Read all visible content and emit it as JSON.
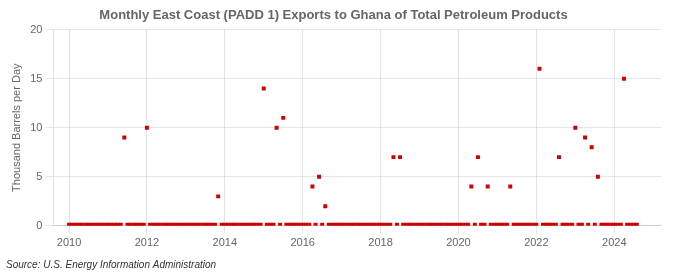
{
  "chart_data": {
    "type": "scatter",
    "title": "Monthly East Coast (PADD 1) Exports to Ghana of Total Petroleum Products",
    "y_label": "Thousand Barrels per Day",
    "annotations": [
      "Source: U.S. Energy Information Administration"
    ],
    "color": "#cc0000",
    "marker": "square",
    "grid": true,
    "xlim": [
      2009.6,
      2025.2
    ],
    "xticks": [
      2010,
      2012,
      2014,
      2016,
      2018,
      2020,
      2022,
      2024
    ],
    "ylim": [
      0,
      20
    ],
    "yticks": [
      0,
      5,
      10,
      15,
      20
    ],
    "x": [
      2010.0,
      2010.08,
      2010.17,
      2010.25,
      2010.33,
      2010.42,
      2010.5,
      2010.58,
      2010.67,
      2010.75,
      2010.83,
      2010.92,
      2011.0,
      2011.08,
      2011.17,
      2011.25,
      2011.33,
      2011.42,
      2011.5,
      2011.58,
      2011.67,
      2011.75,
      2011.83,
      2011.92,
      2012.0,
      2012.08,
      2012.17,
      2012.25,
      2012.33,
      2012.42,
      2012.5,
      2012.58,
      2012.67,
      2012.75,
      2012.83,
      2012.92,
      2013.0,
      2013.08,
      2013.17,
      2013.25,
      2013.33,
      2013.42,
      2013.5,
      2013.58,
      2013.67,
      2013.75,
      2013.83,
      2013.92,
      2014.0,
      2014.08,
      2014.17,
      2014.25,
      2014.33,
      2014.42,
      2014.5,
      2014.58,
      2014.67,
      2014.75,
      2014.83,
      2014.92,
      2015.0,
      2015.08,
      2015.17,
      2015.25,
      2015.33,
      2015.42,
      2015.5,
      2015.58,
      2015.67,
      2015.75,
      2015.83,
      2015.92,
      2016.0,
      2016.08,
      2016.17,
      2016.25,
      2016.33,
      2016.42,
      2016.5,
      2016.58,
      2016.67,
      2016.75,
      2016.83,
      2016.92,
      2017.0,
      2017.08,
      2017.17,
      2017.25,
      2017.33,
      2017.42,
      2017.5,
      2017.58,
      2017.67,
      2017.75,
      2017.83,
      2017.92,
      2018.0,
      2018.08,
      2018.17,
      2018.25,
      2018.33,
      2018.42,
      2018.5,
      2018.58,
      2018.67,
      2018.75,
      2018.83,
      2018.92,
      2019.0,
      2019.08,
      2019.17,
      2019.25,
      2019.33,
      2019.42,
      2019.5,
      2019.58,
      2019.67,
      2019.75,
      2019.83,
      2019.92,
      2020.0,
      2020.08,
      2020.17,
      2020.25,
      2020.33,
      2020.42,
      2020.5,
      2020.58,
      2020.67,
      2020.75,
      2020.83,
      2020.92,
      2021.0,
      2021.08,
      2021.17,
      2021.25,
      2021.33,
      2021.42,
      2021.5,
      2021.58,
      2021.67,
      2021.75,
      2021.83,
      2021.92,
      2022.0,
      2022.08,
      2022.17,
      2022.25,
      2022.33,
      2022.42,
      2022.5,
      2022.58,
      2022.67,
      2022.75,
      2022.83,
      2022.92,
      2023.0,
      2023.08,
      2023.17,
      2023.25,
      2023.33,
      2023.42,
      2023.5,
      2023.58,
      2023.67,
      2023.75,
      2023.83,
      2023.92,
      2024.0,
      2024.08,
      2024.17,
      2024.25,
      2024.33,
      2024.42,
      2024.5,
      2024.58
    ],
    "values": [
      0.1,
      0.1,
      0.1,
      0.1,
      0.1,
      0.1,
      0.1,
      0.1,
      0.1,
      0.1,
      0.1,
      0.1,
      0.1,
      0.1,
      0.1,
      0.1,
      0.1,
      9.0,
      0.1,
      0.1,
      0.1,
      0.1,
      0.1,
      0.1,
      10.0,
      0.1,
      0.1,
      0.1,
      0.1,
      0.1,
      0.1,
      0.1,
      0.1,
      0.1,
      0.1,
      0.1,
      0.1,
      0.1,
      0.1,
      0.1,
      0.1,
      0.1,
      0.1,
      0.1,
      0.1,
      0.1,
      3.0,
      0.1,
      0.1,
      0.1,
      0.1,
      0.1,
      0.1,
      0.1,
      0.1,
      0.1,
      0.1,
      0.1,
      0.1,
      0.1,
      14.0,
      0.1,
      0.1,
      0.1,
      10.0,
      0.1,
      11.0,
      0.1,
      0.1,
      0.1,
      0.1,
      0.1,
      0.1,
      0.1,
      0.1,
      4.0,
      0.1,
      5.0,
      0.1,
      2.0,
      0.1,
      0.1,
      0.1,
      0.1,
      0.1,
      0.1,
      0.1,
      0.1,
      0.1,
      0.1,
      0.1,
      0.1,
      0.1,
      0.1,
      0.1,
      0.1,
      0.1,
      0.1,
      0.1,
      0.1,
      7.0,
      0.1,
      7.0,
      0.1,
      0.1,
      0.1,
      0.1,
      0.1,
      0.1,
      0.1,
      0.1,
      0.1,
      0.1,
      0.1,
      0.1,
      0.1,
      0.1,
      0.1,
      0.1,
      0.1,
      0.1,
      0.1,
      0.1,
      0.1,
      4.0,
      0.1,
      7.0,
      0.1,
      0.1,
      4.0,
      0.1,
      0.1,
      0.1,
      0.1,
      0.1,
      0.1,
      4.0,
      0.1,
      0.1,
      0.1,
      0.1,
      0.1,
      0.1,
      0.1,
      0.1,
      16.0,
      0.1,
      0.1,
      0.1,
      0.1,
      0.1,
      7.0,
      0.1,
      0.1,
      0.1,
      0.1,
      10.0,
      0.1,
      0.1,
      9.0,
      0.1,
      8.0,
      0.1,
      5.0,
      0.1,
      0.1,
      0.1,
      0.1,
      0.1,
      0.1,
      0.1,
      15.0,
      0.1,
      0.1,
      0.1,
      0.1
    ]
  }
}
